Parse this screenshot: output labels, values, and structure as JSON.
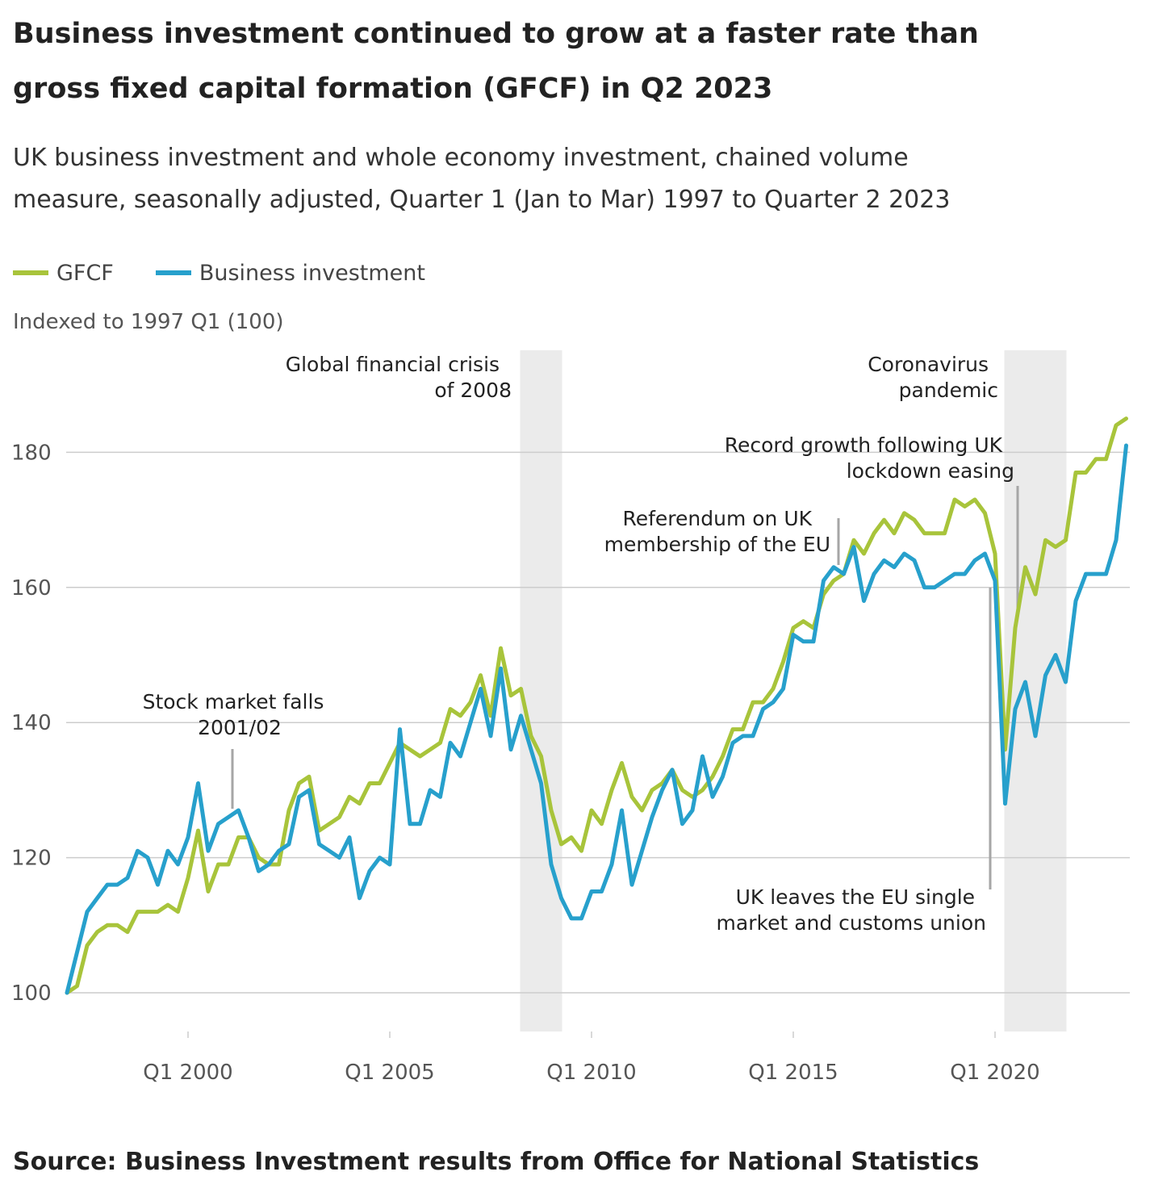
{
  "header": {
    "title_line1": "Business investment continued to grow at a faster rate than",
    "title_line2": "gross fixed capital formation (GFCF) in Q2 2023",
    "subtitle_line1": "UK business investment and whole economy investment, chained volume",
    "subtitle_line2": "measure, seasonally adjusted, Quarter 1 (Jan to Mar) 1997 to Quarter 2 2023"
  },
  "legend": {
    "gfcf_label": "GFCF",
    "bi_label": "Business investment"
  },
  "units_label": "Indexed to 1997 Q1 (100)",
  "source": "Source: Business Investment results from Office for National Statistics",
  "colors": {
    "gfcf": "#a8c43b",
    "business_investment": "#27a0cc",
    "shade": "#ebebeb",
    "grid": "#cccccc",
    "leader": "#a6a6a6"
  },
  "annotations": {
    "stock_market_l1": "Stock market falls",
    "stock_market_l2": "2001/02",
    "gfc_l1": "Global financial crisis",
    "gfc_l2": "of 2008",
    "referendum_l1": "Referendum on UK",
    "referendum_l2": "membership of the EU",
    "covid_l1": "Coronavirus",
    "covid_l2": "pandemic",
    "record_l1": "Record growth following UK",
    "record_l2": "lockdown easing",
    "brexit_l1": "UK leaves the EU single",
    "brexit_l2": "market and customs union"
  },
  "chart_data": {
    "type": "line",
    "title": "Business investment continued to grow at a faster rate than gross fixed capital formation (GFCF) in Q2 2023",
    "subtitle": "UK business investment and whole economy investment, chained volume measure, seasonally adjusted, Quarter 1 (Jan to Mar) 1997 to Quarter 2 2023",
    "ylabel": "Indexed to 1997 Q1 (100)",
    "x_start": "1997 Q1",
    "x_end": "2023 Q2",
    "ylim": [
      94,
      194
    ],
    "y_ticks": [
      100,
      120,
      140,
      160,
      180
    ],
    "x_ticks": [
      {
        "label": "Q1 2000",
        "year": 2000
      },
      {
        "label": "Q1 2005",
        "year": 2005
      },
      {
        "label": "Q1 2010",
        "year": 2010
      },
      {
        "label": "Q1 2015",
        "year": 2015
      },
      {
        "label": "Q1 2020",
        "year": 2020
      }
    ],
    "grid": true,
    "legend_position": "top-left",
    "shaded_periods": [
      {
        "label": "Global financial crisis of 2008",
        "start": "2008 Q2",
        "end": "2009 Q2"
      },
      {
        "label": "Coronavirus pandemic",
        "start": "2020 Q2",
        "end": "2021 Q4"
      }
    ],
    "series": [
      {
        "name": "GFCF",
        "values": [
          100,
          101,
          107,
          109,
          110,
          110,
          109,
          112,
          112,
          112,
          113,
          112,
          117,
          124,
          115,
          119,
          119,
          123,
          123,
          120,
          119,
          119,
          127,
          131,
          132,
          124,
          125,
          126,
          129,
          128,
          131,
          131,
          134,
          137,
          136,
          135,
          136,
          137,
          142,
          141,
          143,
          147,
          141,
          151,
          144,
          145,
          138,
          135,
          127,
          122,
          123,
          121,
          127,
          125,
          130,
          134,
          129,
          127,
          130,
          131,
          133,
          130,
          129,
          130,
          132,
          135,
          139,
          139,
          143,
          143,
          145,
          149,
          154,
          155,
          154,
          159,
          161,
          162,
          167,
          165,
          168,
          170,
          168,
          171,
          170,
          168,
          168,
          168,
          173,
          172,
          173,
          171,
          165,
          136,
          154,
          163,
          159,
          167,
          166,
          167,
          177,
          177,
          179,
          179,
          184,
          185
        ]
      },
      {
        "name": "Business investment",
        "values": [
          100,
          106,
          112,
          114,
          116,
          116,
          117,
          121,
          120,
          116,
          121,
          119,
          123,
          131,
          121,
          125,
          126,
          127,
          123,
          118,
          119,
          121,
          122,
          129,
          130,
          122,
          121,
          120,
          123,
          114,
          118,
          120,
          119,
          139,
          125,
          125,
          130,
          129,
          137,
          135,
          140,
          145,
          138,
          148,
          136,
          141,
          136,
          131,
          119,
          114,
          111,
          111,
          115,
          115,
          119,
          127,
          116,
          121,
          126,
          130,
          133,
          125,
          127,
          135,
          129,
          132,
          137,
          138,
          138,
          142,
          143,
          145,
          153,
          152,
          152,
          161,
          163,
          162,
          166,
          158,
          162,
          164,
          163,
          165,
          164,
          160,
          160,
          161,
          162,
          162,
          164,
          165,
          161,
          128,
          142,
          146,
          138,
          147,
          150,
          146,
          158,
          162,
          162,
          162,
          167,
          181
        ]
      }
    ]
  }
}
